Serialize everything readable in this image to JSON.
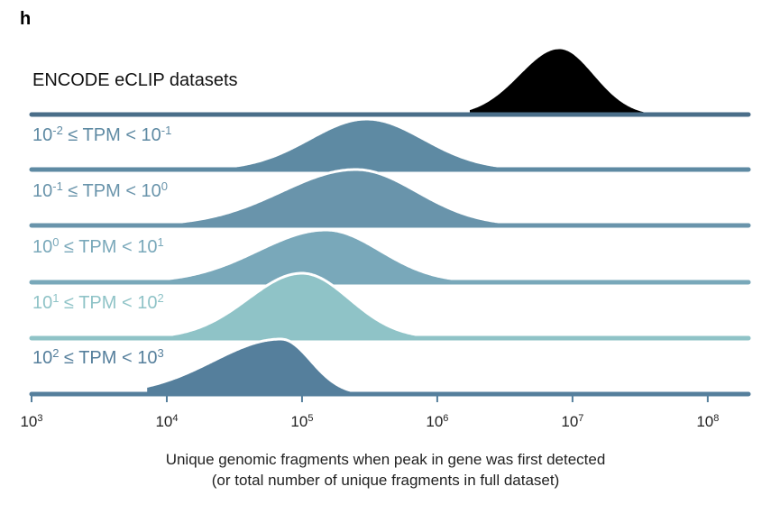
{
  "panel_letter": "h",
  "chart_data": {
    "type": "ridgeline",
    "x_scale": "log10",
    "xlim": [
      1000,
      200000000
    ],
    "xticks": [
      {
        "value": 1000,
        "base": "10",
        "exp": "3"
      },
      {
        "value": 10000,
        "base": "10",
        "exp": "4"
      },
      {
        "value": 100000,
        "base": "10",
        "exp": "5"
      },
      {
        "value": 1000000,
        "base": "10",
        "exp": "6"
      },
      {
        "value": 10000000,
        "base": "10",
        "exp": "7"
      },
      {
        "value": 100000000,
        "base": "10",
        "exp": "8"
      }
    ],
    "xlabel_line1": "Unique genomic fragments when peak in gene was first detected",
    "xlabel_line2": "(or total number of unique fragments in full dataset)",
    "series": [
      {
        "name": "ENCODE eCLIP datasets",
        "color": "#000000",
        "label_color": "#111111",
        "label_parts": [
          {
            "t": "ENCODE eCLIP datasets"
          }
        ],
        "peak_x": 8000000,
        "sd_left_log10": 0.3,
        "sd_right_log10": 0.26,
        "min_x": 1700000,
        "max_x": 35000000
      },
      {
        "name": "10^-2 ≤ TPM < 10^-1",
        "color": "#5e8aa3",
        "label_color": "#5e8aa3",
        "label_parts": [
          {
            "t": "10"
          },
          {
            "sup": "-2"
          },
          {
            "t": " ≤ TPM < 10"
          },
          {
            "sup": "-1"
          }
        ],
        "peak_x": 300000,
        "sd_left_log10": 0.42,
        "sd_right_log10": 0.42,
        "min_x": 12000,
        "max_x": 10000000
      },
      {
        "name": "10^-1 ≤ TPM < 10^0",
        "color": "#6994ab",
        "label_color": "#6994ab",
        "label_parts": [
          {
            "t": "10"
          },
          {
            "sup": "-1"
          },
          {
            "t": " ≤ TPM < 10"
          },
          {
            "sup": "0"
          }
        ],
        "peak_x": 250000,
        "sd_left_log10": 0.55,
        "sd_right_log10": 0.45,
        "min_x": 4000,
        "max_x": 10000000
      },
      {
        "name": "10^0 ≤ TPM < 10^1",
        "color": "#79a8ba",
        "label_color": "#79a8ba",
        "label_parts": [
          {
            "t": "10"
          },
          {
            "sup": "0"
          },
          {
            "t": " ≤ TPM < 10"
          },
          {
            "sup": "1"
          }
        ],
        "peak_x": 150000,
        "sd_left_log10": 0.5,
        "sd_right_log10": 0.4,
        "min_x": 5000,
        "max_x": 5000000
      },
      {
        "name": "10^1 ≤ TPM < 10^2",
        "color": "#8fc3c7",
        "label_color": "#8fc3c7",
        "label_parts": [
          {
            "t": "10"
          },
          {
            "sup": "1"
          },
          {
            "t": " ≤ TPM < 10"
          },
          {
            "sup": "2"
          }
        ],
        "peak_x": 100000,
        "sd_left_log10": 0.4,
        "sd_right_log10": 0.35,
        "min_x": 10000,
        "max_x": 2000000
      },
      {
        "name": "10^2 ≤ TPM < 10^3",
        "color": "#557f9c",
        "label_color": "#557f9c",
        "label_parts": [
          {
            "t": "10"
          },
          {
            "sup": "2"
          },
          {
            "t": " ≤ TPM < 10"
          },
          {
            "sup": "3"
          }
        ],
        "peak_x": 70000,
        "sd_left_log10": 0.5,
        "sd_right_log10": 0.22,
        "min_x": 7000,
        "max_x": 500000
      }
    ]
  }
}
